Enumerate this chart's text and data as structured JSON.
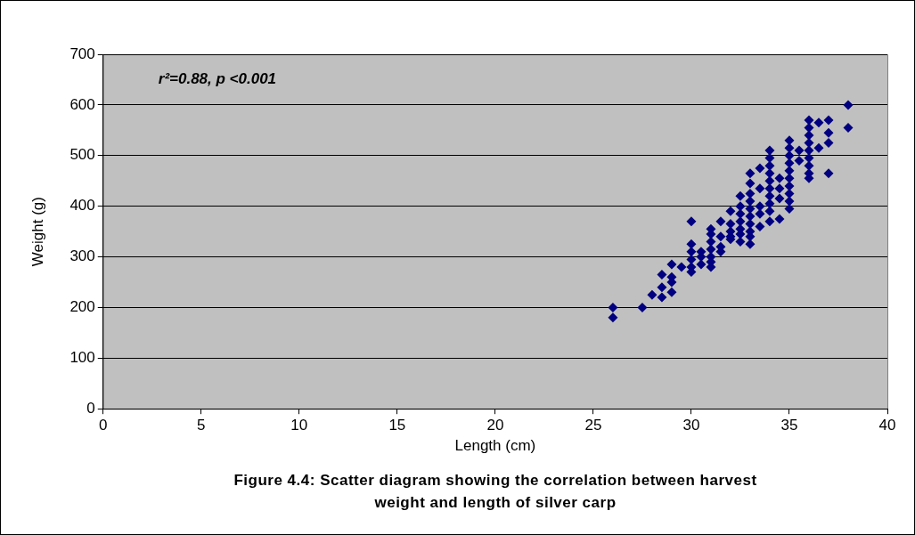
{
  "chart_data": {
    "type": "scatter",
    "xlabel": "Length (cm)",
    "ylabel": "Weight (g)",
    "title": "Figure 4.4: Scatter diagram showing the correlation between harvest weight and length of silver carp",
    "annotations": [
      "r²=0.88, p <0.001"
    ],
    "xlim": [
      0,
      40
    ],
    "xticks": [
      0,
      5,
      10,
      15,
      20,
      25,
      30,
      35,
      40
    ],
    "ylim": [
      0,
      700
    ],
    "yticks": [
      0,
      100,
      200,
      300,
      400,
      500,
      600,
      700
    ],
    "grid": "y",
    "legend": false,
    "marker": "diamond",
    "series": [
      {
        "color": "#000080",
        "x": [
          26,
          26,
          27.5,
          28,
          28.5,
          28.5,
          28.5,
          29,
          29,
          29,
          29,
          29.5,
          30,
          30,
          30,
          30,
          30,
          30,
          30.5,
          30.5,
          30.5,
          31,
          31,
          31,
          31,
          31,
          31,
          31,
          31.5,
          31.5,
          31.5,
          31.5,
          32,
          32,
          32,
          32,
          32,
          32.5,
          32.5,
          32.5,
          32.5,
          32.5,
          32.5,
          32.5,
          33,
          33,
          33,
          33,
          33,
          33,
          33,
          33,
          33,
          33,
          33.5,
          33.5,
          33.5,
          33.5,
          33.5,
          34,
          34,
          34,
          34,
          34,
          34,
          34,
          34,
          34,
          34,
          34.5,
          34.5,
          34.5,
          34.5,
          35,
          35,
          35,
          35,
          35,
          35,
          35,
          35,
          35,
          35,
          35.5,
          35.5,
          36,
          36,
          36,
          36,
          36,
          36,
          36,
          36,
          36,
          36.5,
          36.5,
          37,
          37,
          37,
          37,
          38,
          38
        ],
        "values": [
          200,
          180,
          200,
          225,
          240,
          265,
          220,
          285,
          260,
          250,
          230,
          280,
          370,
          325,
          310,
          295,
          280,
          270,
          300,
          285,
          310,
          355,
          345,
          330,
          315,
          300,
          290,
          280,
          370,
          340,
          320,
          310,
          390,
          365,
          350,
          340,
          335,
          420,
          400,
          385,
          370,
          355,
          345,
          330,
          465,
          445,
          425,
          410,
          395,
          380,
          365,
          350,
          340,
          325,
          475,
          435,
          400,
          385,
          360,
          510,
          495,
          480,
          465,
          450,
          435,
          420,
          405,
          390,
          370,
          455,
          435,
          415,
          375,
          530,
          515,
          500,
          485,
          470,
          455,
          440,
          425,
          410,
          395,
          510,
          490,
          570,
          555,
          540,
          525,
          510,
          495,
          480,
          465,
          455,
          565,
          515,
          570,
          545,
          525,
          465,
          600,
          555
        ]
      }
    ]
  }
}
